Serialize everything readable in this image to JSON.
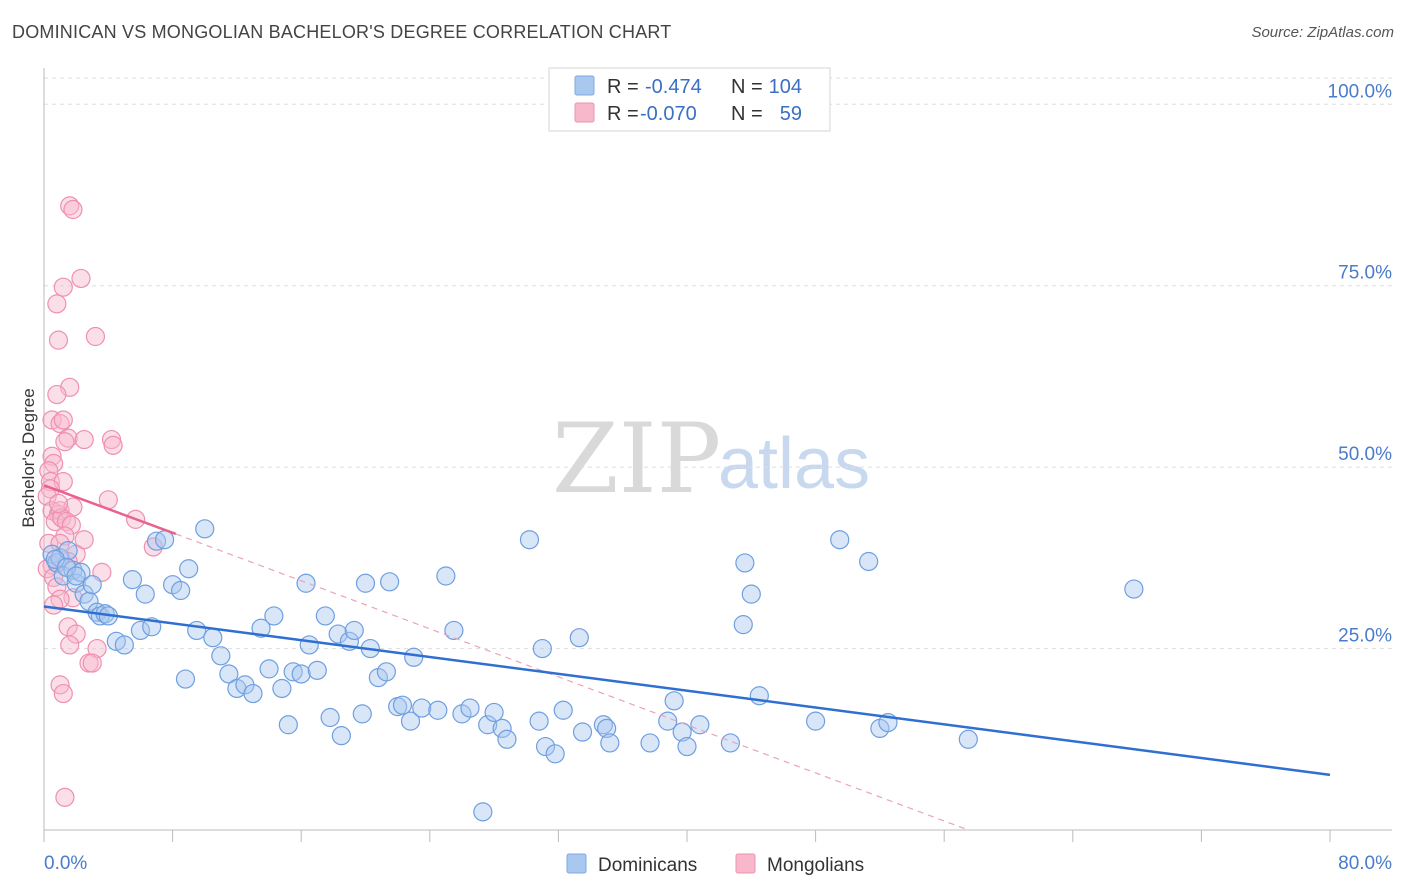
{
  "header": {
    "title": "DOMINICAN VS MONGOLIAN BACHELOR'S DEGREE CORRELATION CHART",
    "source": "Source: ZipAtlas.com"
  },
  "watermark": {
    "zip": "ZIP",
    "atlas": "atlas"
  },
  "legend": {
    "rows": [
      {
        "r_label": "R =",
        "r_value": "-0.474",
        "n_label": "N =",
        "n_value": "104",
        "color": "#a9c8f0"
      },
      {
        "r_label": "R =",
        "r_value": "-0.070",
        "n_label": "N =",
        "n_value": "59",
        "color": "#f7b8cb"
      }
    ]
  },
  "bottom_legend": {
    "series1": "Dominicans",
    "series2": "Mongolians"
  },
  "chart_data": {
    "type": "scatter",
    "title": "DOMINICAN VS MONGOLIAN BACHELOR'S DEGREE CORRELATION CHART",
    "ylabel": "Bachelor's Degree",
    "xlabel": "",
    "xlim": [
      0,
      80
    ],
    "ylim": [
      0,
      105
    ],
    "x_tick_labels": [
      "0.0%",
      "80.0%"
    ],
    "y_ticks": [
      25,
      50,
      75,
      100
    ],
    "y_tick_labels": [
      "25.0%",
      "50.0%",
      "75.0%",
      "100.0%"
    ],
    "grid": true,
    "colors": {
      "dominicans": "#6f9fe0",
      "mongolians": "#f08fb0",
      "dom_line": "#2e6fd0",
      "mon_line": "#e8628f"
    },
    "series": [
      {
        "name": "Dominicans",
        "stats": {
          "R": -0.474,
          "N": 104
        },
        "trend": {
          "x": [
            0,
            80
          ],
          "y": [
            30.8,
            7.6
          ]
        },
        "points": [
          [
            0.5,
            38.0
          ],
          [
            0.8,
            36.8
          ],
          [
            1.0,
            37.5
          ],
          [
            1.2,
            35.0
          ],
          [
            1.5,
            38.5
          ],
          [
            1.8,
            35.8
          ],
          [
            2.0,
            34.0
          ],
          [
            2.3,
            35.5
          ],
          [
            2.5,
            32.5
          ],
          [
            2.8,
            31.5
          ],
          [
            3.0,
            33.8
          ],
          [
            3.3,
            30.0
          ],
          [
            3.5,
            29.5
          ],
          [
            3.8,
            29.8
          ],
          [
            4.0,
            29.5
          ],
          [
            4.5,
            26.0
          ],
          [
            5.0,
            25.5
          ],
          [
            5.5,
            34.5
          ],
          [
            6.0,
            27.5
          ],
          [
            6.3,
            32.5
          ],
          [
            6.7,
            28.0
          ],
          [
            7.0,
            39.8
          ],
          [
            7.5,
            40.0
          ],
          [
            8.0,
            33.8
          ],
          [
            8.5,
            33.0
          ],
          [
            8.8,
            20.8
          ],
          [
            9.0,
            36.0
          ],
          [
            9.5,
            27.5
          ],
          [
            10.0,
            41.5
          ],
          [
            10.5,
            26.5
          ],
          [
            11.0,
            24.0
          ],
          [
            11.5,
            21.5
          ],
          [
            12.0,
            19.5
          ],
          [
            12.5,
            20.0
          ],
          [
            13.0,
            18.8
          ],
          [
            13.5,
            27.8
          ],
          [
            14.0,
            22.2
          ],
          [
            14.3,
            29.5
          ],
          [
            14.8,
            19.5
          ],
          [
            15.2,
            14.5
          ],
          [
            15.5,
            21.8
          ],
          [
            16.0,
            21.5
          ],
          [
            16.3,
            34.0
          ],
          [
            16.5,
            25.5
          ],
          [
            17.0,
            22.0
          ],
          [
            17.5,
            29.5
          ],
          [
            17.8,
            15.5
          ],
          [
            18.3,
            27.0
          ],
          [
            18.5,
            13.0
          ],
          [
            19.0,
            26.0
          ],
          [
            19.3,
            27.5
          ],
          [
            19.8,
            16.0
          ],
          [
            20.0,
            34.0
          ],
          [
            20.3,
            25.0
          ],
          [
            20.8,
            21.0
          ],
          [
            21.3,
            21.8
          ],
          [
            21.5,
            34.2
          ],
          [
            22.0,
            17.0
          ],
          [
            22.3,
            17.2
          ],
          [
            22.8,
            15.0
          ],
          [
            23.0,
            23.8
          ],
          [
            23.5,
            16.8
          ],
          [
            24.5,
            16.5
          ],
          [
            25.0,
            35.0
          ],
          [
            25.5,
            27.5
          ],
          [
            26.0,
            16.0
          ],
          [
            26.5,
            16.8
          ],
          [
            27.3,
            2.5
          ],
          [
            27.6,
            14.5
          ],
          [
            28.0,
            16.2
          ],
          [
            28.5,
            14.0
          ],
          [
            28.8,
            12.5
          ],
          [
            30.2,
            40.0
          ],
          [
            30.8,
            15.0
          ],
          [
            31.0,
            25.0
          ],
          [
            31.2,
            11.5
          ],
          [
            31.8,
            10.5
          ],
          [
            32.3,
            16.5
          ],
          [
            33.3,
            26.5
          ],
          [
            33.5,
            13.5
          ],
          [
            34.8,
            14.5
          ],
          [
            35.0,
            14.0
          ],
          [
            35.2,
            12.0
          ],
          [
            37.7,
            12.0
          ],
          [
            38.8,
            15.0
          ],
          [
            39.2,
            17.8
          ],
          [
            39.7,
            13.5
          ],
          [
            40.0,
            11.5
          ],
          [
            40.8,
            14.5
          ],
          [
            42.7,
            12.0
          ],
          [
            43.5,
            28.3
          ],
          [
            43.6,
            36.8
          ],
          [
            44.0,
            32.5
          ],
          [
            44.5,
            18.5
          ],
          [
            48.0,
            15.0
          ],
          [
            49.5,
            40.0
          ],
          [
            51.3,
            37.0
          ],
          [
            52.0,
            14.0
          ],
          [
            52.5,
            14.8
          ],
          [
            57.5,
            12.5
          ],
          [
            67.8,
            33.2
          ],
          [
            0.7,
            37.3
          ],
          [
            1.4,
            36.2
          ],
          [
            2.0,
            35.0
          ]
        ]
      },
      {
        "name": "Mongolians",
        "stats": {
          "R": -0.07,
          "N": 59
        },
        "trend": {
          "x": [
            0,
            8.2
          ],
          "y": [
            47.5,
            40.8
          ]
        },
        "trend_dashed": {
          "x": [
            8.2,
            57.5
          ],
          "y": [
            40.8,
            0
          ]
        },
        "points": [
          [
            1.6,
            86.0
          ],
          [
            1.8,
            85.5
          ],
          [
            2.3,
            76.0
          ],
          [
            1.2,
            74.8
          ],
          [
            0.8,
            72.5
          ],
          [
            3.2,
            68.0
          ],
          [
            0.9,
            67.5
          ],
          [
            1.6,
            61.0
          ],
          [
            0.8,
            60.0
          ],
          [
            0.5,
            56.5
          ],
          [
            1.0,
            56.0
          ],
          [
            1.2,
            56.5
          ],
          [
            1.5,
            54.0
          ],
          [
            1.3,
            53.5
          ],
          [
            2.5,
            53.8
          ],
          [
            4.2,
            53.8
          ],
          [
            4.3,
            53.0
          ],
          [
            0.5,
            51.5
          ],
          [
            0.6,
            50.5
          ],
          [
            0.3,
            49.5
          ],
          [
            0.4,
            48.0
          ],
          [
            1.2,
            48.0
          ],
          [
            0.4,
            47.0
          ],
          [
            0.2,
            46.0
          ],
          [
            4.0,
            45.5
          ],
          [
            0.5,
            44.0
          ],
          [
            0.9,
            43.5
          ],
          [
            1.0,
            44.0
          ],
          [
            1.8,
            44.5
          ],
          [
            0.7,
            42.5
          ],
          [
            1.1,
            43.0
          ],
          [
            1.4,
            42.5
          ],
          [
            1.7,
            42.0
          ],
          [
            5.7,
            42.8
          ],
          [
            1.3,
            40.5
          ],
          [
            0.3,
            39.5
          ],
          [
            1.0,
            39.5
          ],
          [
            6.8,
            39.0
          ],
          [
            0.5,
            36.5
          ],
          [
            0.2,
            36.0
          ],
          [
            3.6,
            35.5
          ],
          [
            0.6,
            34.8
          ],
          [
            0.8,
            33.5
          ],
          [
            1.8,
            32.0
          ],
          [
            1.0,
            31.8
          ],
          [
            0.6,
            31.0
          ],
          [
            1.5,
            28.0
          ],
          [
            2.0,
            27.0
          ],
          [
            1.6,
            25.5
          ],
          [
            3.3,
            25.0
          ],
          [
            2.8,
            23.0
          ],
          [
            3.0,
            23.0
          ],
          [
            1.0,
            20.0
          ],
          [
            1.2,
            18.8
          ],
          [
            1.3,
            4.5
          ],
          [
            2.0,
            38.0
          ],
          [
            0.9,
            45.0
          ],
          [
            2.5,
            40.0
          ],
          [
            1.5,
            37.0
          ]
        ]
      }
    ]
  }
}
